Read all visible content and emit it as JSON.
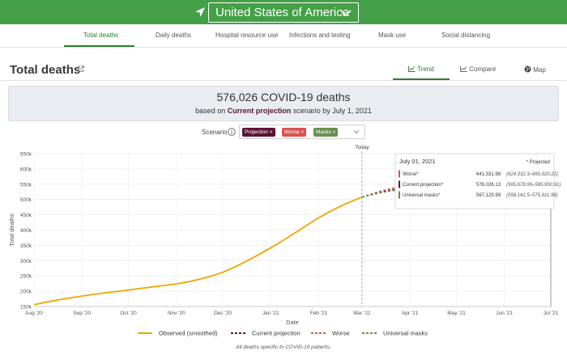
{
  "colors": {
    "brand_green": "#44a047",
    "active_green": "#2e7d32",
    "observed": "#f0a500",
    "projection": "#5a1436",
    "worse": "#d9534f",
    "masks": "#6b8e4e"
  },
  "location": {
    "value": "United States of America",
    "icon": "location-arrow-icon"
  },
  "nav": {
    "tabs": [
      {
        "label": "Total deaths",
        "active": true
      },
      {
        "label": "Daily deaths",
        "active": false
      },
      {
        "label": "Hospital resource use",
        "active": false
      },
      {
        "label": "Infections and testing",
        "active": false
      },
      {
        "label": "Mask use",
        "active": false
      },
      {
        "label": "Social distancing",
        "active": false
      }
    ]
  },
  "section": {
    "title": "Total deaths",
    "views": [
      {
        "label": "Trend",
        "icon": "line-chart-icon",
        "active": true
      },
      {
        "label": "Compare",
        "icon": "compare-chart-icon",
        "active": false
      },
      {
        "label": "Map",
        "icon": "globe-icon",
        "active": false
      }
    ]
  },
  "summary": {
    "headline": "576,026 COVID-19 deaths",
    "sub_prefix": "based on",
    "sub_bold": "Current projection",
    "sub_suffix": "scenario by July 1, 2021"
  },
  "scenario": {
    "label": "Scenario",
    "chips": [
      {
        "label": "Projection ×",
        "color": "#5a1436"
      },
      {
        "label": "Worse ×",
        "color": "#d9534f"
      },
      {
        "label": "Masks ×",
        "color": "#6b8e4e"
      }
    ]
  },
  "chart_data": {
    "type": "line",
    "xlabel": "Date",
    "ylabel": "Total deaths",
    "ylim": [
      150000,
      650000
    ],
    "y_ticks": [
      "150k",
      "200k",
      "250k",
      "300k",
      "350k",
      "400k",
      "450k",
      "500k",
      "550k",
      "600k",
      "650k"
    ],
    "x_ticks": [
      "Aug '20",
      "Sep '20",
      "Oct '20",
      "Nov '20",
      "Dec '20",
      "Jan '21",
      "Feb '21",
      "Mar '21",
      "Apr '21",
      "May '21",
      "Jun '21",
      "Jul '21"
    ],
    "today_label": "Today",
    "grid": true,
    "legend_position": "bottom",
    "series": [
      {
        "name": "Observed (smoothed)",
        "color": "#f0a500",
        "style": "solid",
        "points": [
          [
            "2020-08-01",
            156000
          ],
          [
            "2020-08-15",
            170000
          ],
          [
            "2020-09-01",
            184000
          ],
          [
            "2020-09-15",
            194000
          ],
          [
            "2020-10-01",
            204000
          ],
          [
            "2020-10-15",
            213000
          ],
          [
            "2020-11-01",
            224000
          ],
          [
            "2020-11-15",
            238000
          ],
          [
            "2020-12-01",
            262000
          ],
          [
            "2020-12-15",
            295000
          ],
          [
            "2021-01-01",
            342000
          ],
          [
            "2021-01-15",
            385000
          ],
          [
            "2021-02-01",
            440000
          ],
          [
            "2021-02-15",
            478000
          ],
          [
            "2021-03-01",
            508000
          ]
        ]
      },
      {
        "name": "Current projection",
        "color": "#5a1436",
        "style": "dashed",
        "points": [
          [
            "2021-03-01",
            508000
          ],
          [
            "2021-03-15",
            526000
          ],
          [
            "2021-04-01",
            540000
          ],
          [
            "2021-05-01",
            558000
          ],
          [
            "2021-06-01",
            570000
          ],
          [
            "2021-07-01",
            576026
          ]
        ]
      },
      {
        "name": "Worse",
        "color": "#d9534f",
        "style": "dashed",
        "points": [
          [
            "2021-03-01",
            508000
          ],
          [
            "2021-03-15",
            530000
          ],
          [
            "2021-04-01",
            550000
          ],
          [
            "2021-05-01",
            590000
          ],
          [
            "2021-06-01",
            622000
          ],
          [
            "2021-07-01",
            641332
          ]
        ]
      },
      {
        "name": "Universal masks",
        "color": "#6b8e4e",
        "style": "dashed",
        "points": [
          [
            "2021-03-01",
            508000
          ],
          [
            "2021-03-15",
            524000
          ],
          [
            "2021-04-01",
            536000
          ],
          [
            "2021-05-01",
            552000
          ],
          [
            "2021-06-01",
            562000
          ],
          [
            "2021-07-01",
            567126
          ]
        ]
      }
    ],
    "tooltip": {
      "date": "July 01, 2021",
      "note": "* Projected",
      "rows": [
        {
          "name": "Worse*",
          "value": "641,331.98",
          "range": "(624,332.3–660,920.22)",
          "color": "#d9534f"
        },
        {
          "name": "Current projection*",
          "value": "576,026.13",
          "range": "(565,678.99–585,950.91)",
          "color": "#5a1436"
        },
        {
          "name": "Universal masks*",
          "value": "567,125.99",
          "range": "(558,141.5–575,911.99)",
          "color": "#6b8e4e"
        }
      ]
    }
  },
  "footnote": "All deaths specific to COVID-19 patients."
}
